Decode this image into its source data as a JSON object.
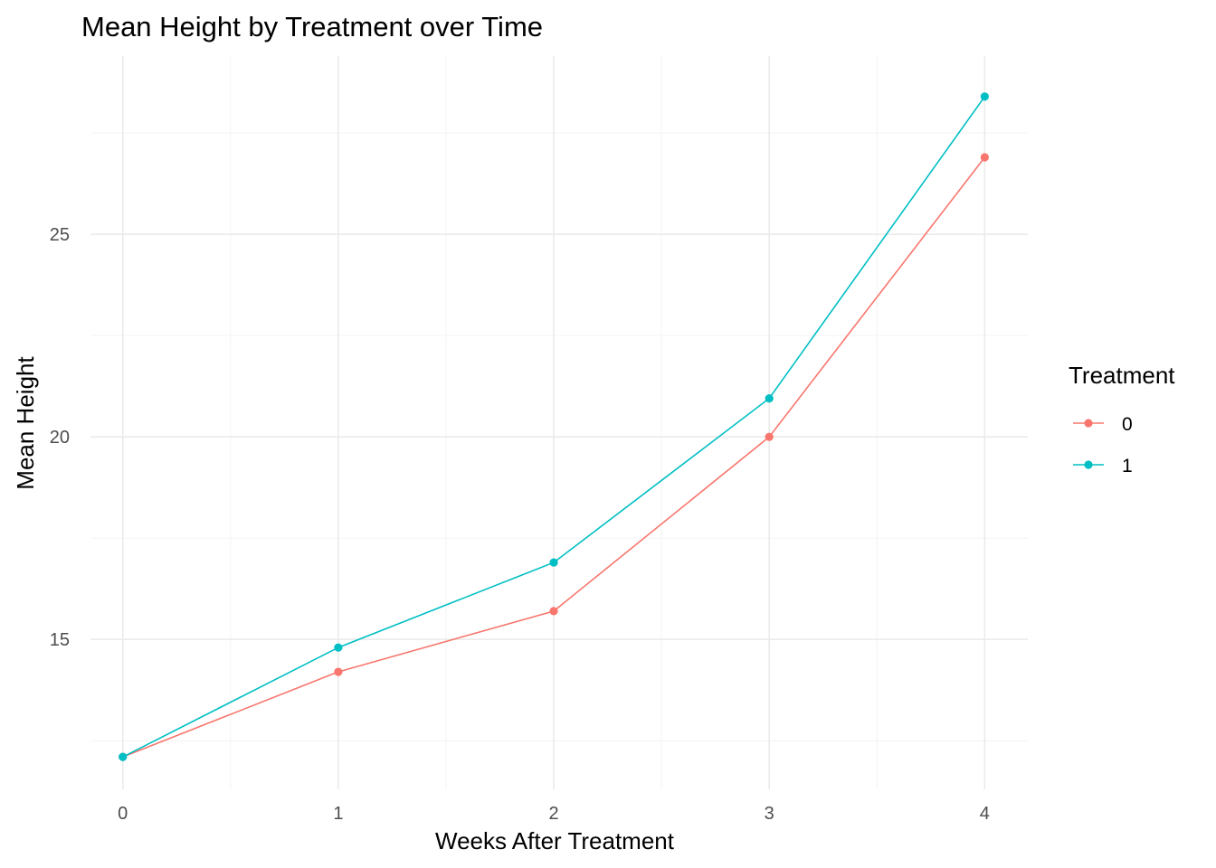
{
  "chart_data": {
    "type": "line",
    "title": "Mean Height by Treatment over Time",
    "xlabel": "Weeks After Treatment",
    "ylabel": "Mean Height",
    "x": [
      0,
      1,
      2,
      3,
      4
    ],
    "xticks": [
      "0",
      "1",
      "2",
      "3",
      "4"
    ],
    "xlim": [
      -0.15,
      4.2
    ],
    "ylim": [
      11.3,
      29.4
    ],
    "yticks": [
      15,
      20,
      25
    ],
    "yticks_minor": [
      12.5,
      17.5,
      22.5,
      27.5
    ],
    "ytick_labels": [
      "15",
      "20",
      "25"
    ],
    "grid": true,
    "legend": {
      "title": "Treatment",
      "position": "right"
    },
    "series": [
      {
        "name": "0",
        "color": "#F8766D",
        "values": [
          12.1,
          14.2,
          15.7,
          20.0,
          26.9
        ]
      },
      {
        "name": "1",
        "color": "#00BFC4",
        "values": [
          12.1,
          14.8,
          16.9,
          20.95,
          28.4
        ]
      }
    ]
  }
}
